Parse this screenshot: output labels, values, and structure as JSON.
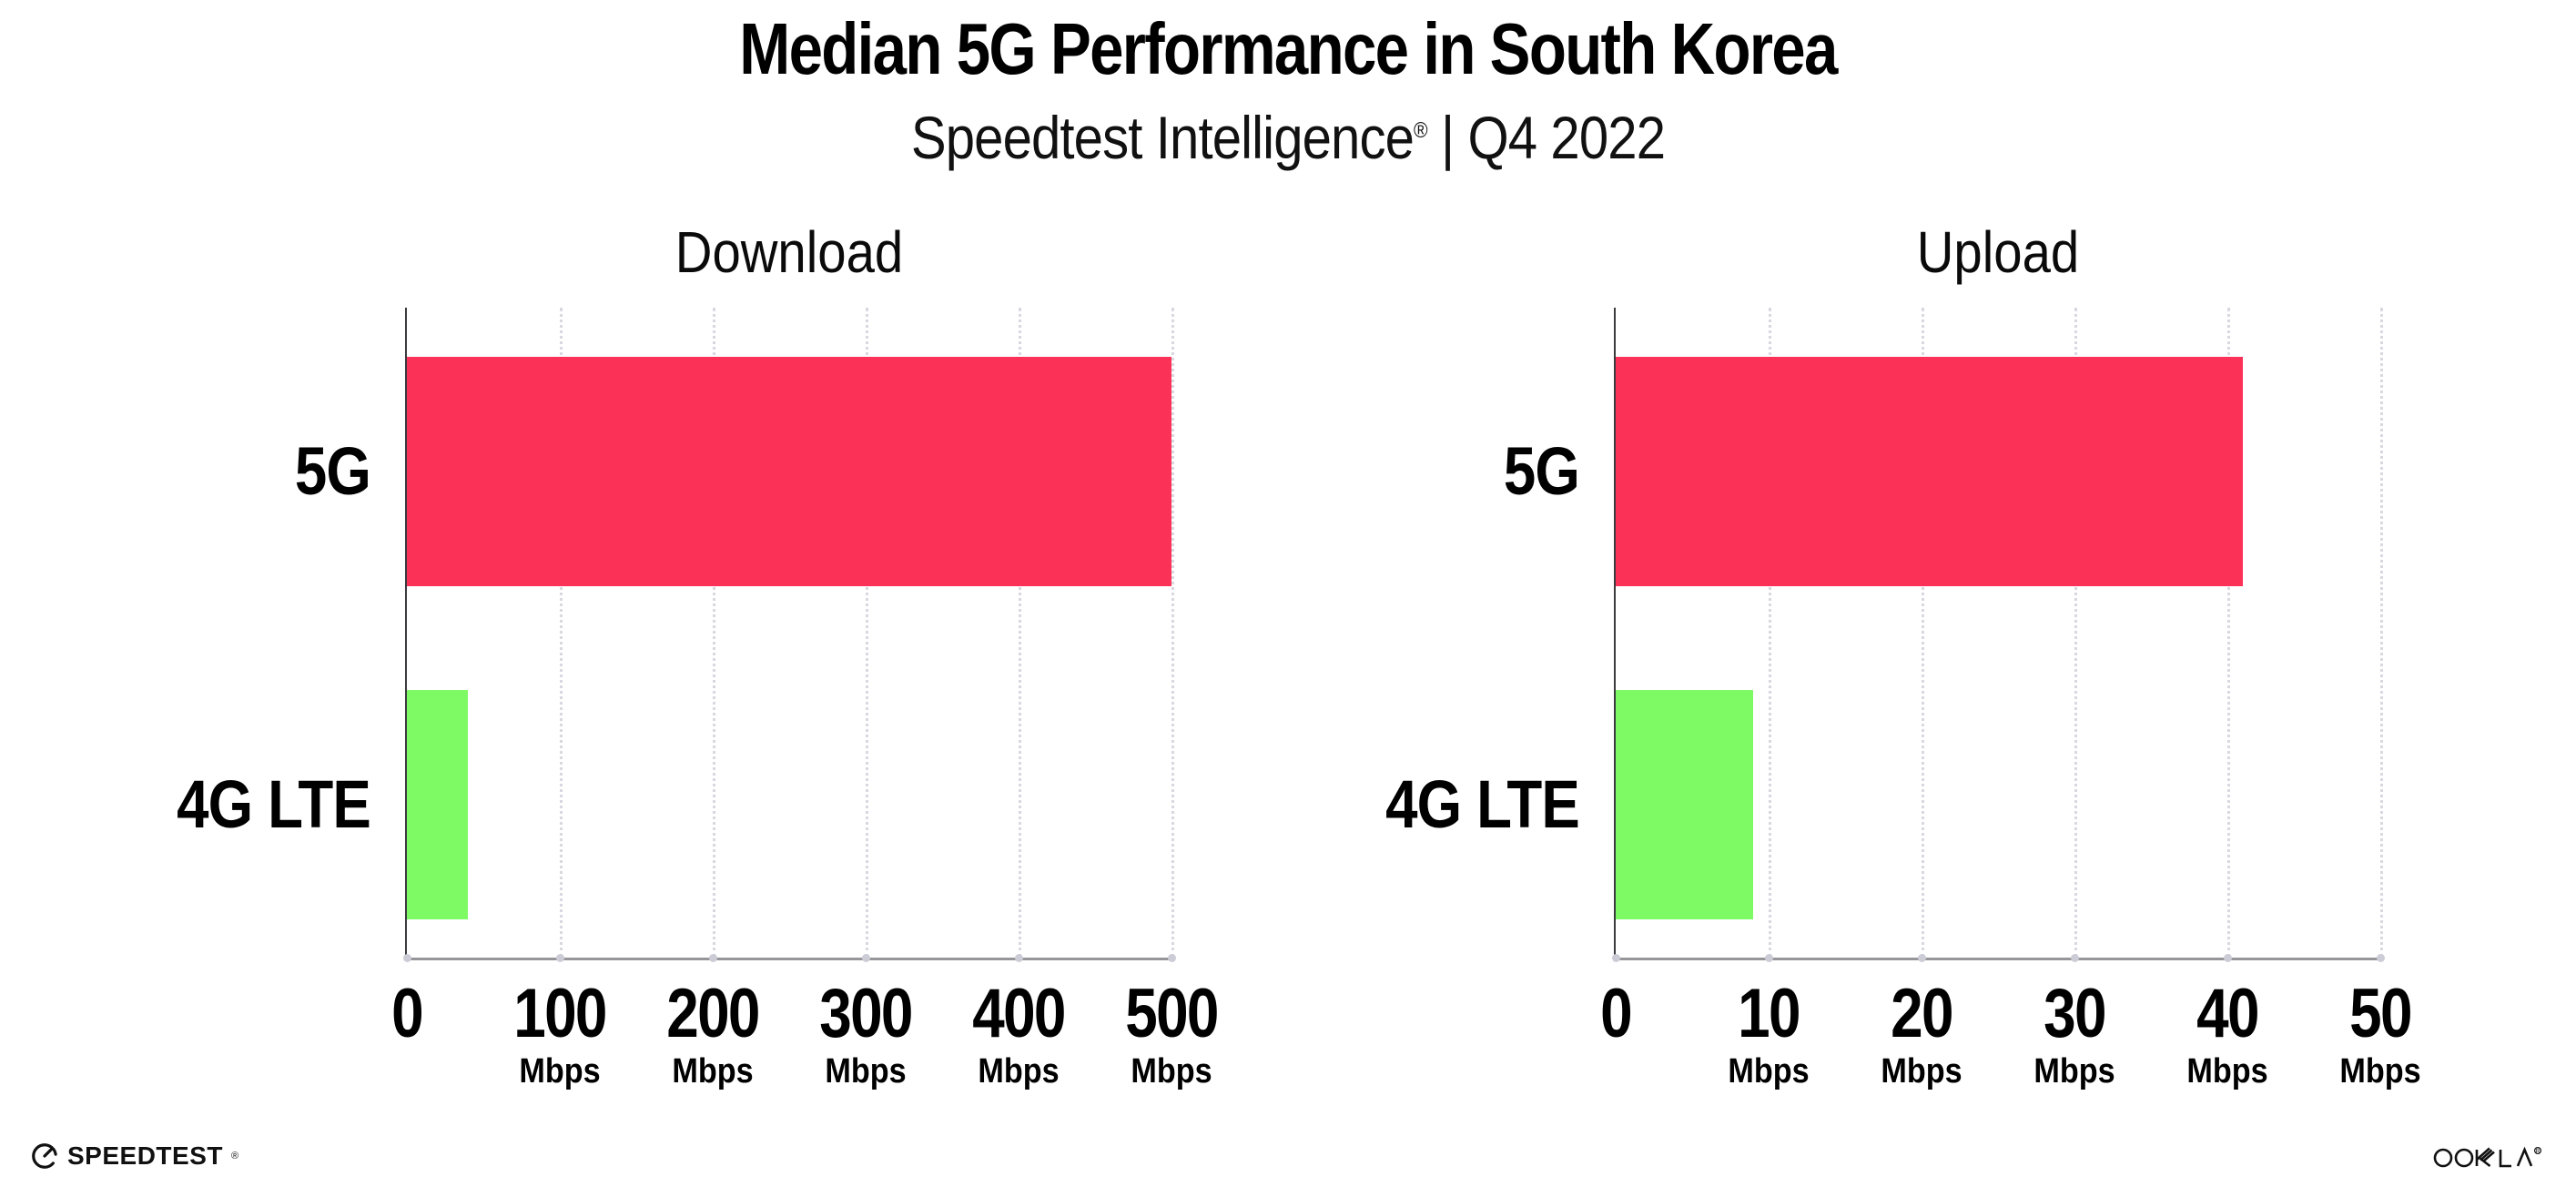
{
  "header": {
    "title": "Median 5G Performance in South Korea",
    "subtitle": {
      "brand": "Speedtest Intelligence",
      "reg": "®",
      "rest": " | Q4 2022"
    }
  },
  "chart_data": [
    {
      "type": "bar",
      "orientation": "horizontal",
      "title": "Download",
      "categories": [
        "5G",
        "4G LTE"
      ],
      "values": [
        500,
        40
      ],
      "value_unit": "Mbps",
      "xlim": [
        0,
        500
      ],
      "xticks": [
        0,
        100,
        200,
        300,
        400,
        500
      ],
      "xtick_unit": "Mbps",
      "unit_on_zero_tick": false,
      "bar_colors": [
        "#fc3158",
        "#7efb64"
      ],
      "grid": "vertical-dotted",
      "legend": "none"
    },
    {
      "type": "bar",
      "orientation": "horizontal",
      "title": "Upload",
      "categories": [
        "5G",
        "4G LTE"
      ],
      "values": [
        41,
        9
      ],
      "value_unit": "Mbps",
      "xlim": [
        0,
        50
      ],
      "xticks": [
        0,
        10,
        20,
        30,
        40,
        50
      ],
      "xtick_unit": "Mbps",
      "unit_on_zero_tick": false,
      "bar_colors": [
        "#fc3158",
        "#7efb64"
      ],
      "grid": "vertical-dotted",
      "legend": "none"
    }
  ],
  "footer": {
    "speedtest": {
      "label": "SPEEDTEST",
      "reg": "®"
    },
    "ookla": {
      "label": "OOKLA",
      "reg": "®"
    }
  },
  "colors": {
    "bar_5g": "#fc3158",
    "bar_4g_lte": "#7efb64",
    "gridline": "#d8d8e0",
    "x_axis": "#95959a",
    "y_axis": "#3a3a3f",
    "text": "#000000"
  }
}
